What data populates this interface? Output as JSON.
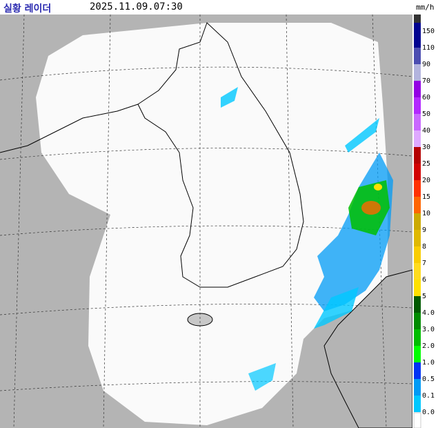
{
  "header": {
    "title": "실황 레이더",
    "time": "2025.11.09.07:30",
    "unit": "mm/h"
  },
  "legend": {
    "items": [
      {
        "label": "150",
        "color": "#000390"
      },
      {
        "label": "110",
        "color": "#000390"
      },
      {
        "label": "90",
        "color": "#4c4eb1"
      },
      {
        "label": "70",
        "color": "#b3b4de"
      },
      {
        "label": "60",
        "color": "#9300e4"
      },
      {
        "label": "50",
        "color": "#b329ff"
      },
      {
        "label": "40",
        "color": "#c969ff"
      },
      {
        "label": "30",
        "color": "#dfa9ff"
      },
      {
        "label": "25",
        "color": "#b40000"
      },
      {
        "label": "20",
        "color": "#d20000"
      },
      {
        "label": "15",
        "color": "#ff3200"
      },
      {
        "label": "10",
        "color": "#ff6600"
      },
      {
        "label": "9",
        "color": "#ccaa00"
      },
      {
        "label": "8",
        "color": "#e0b900"
      },
      {
        "label": "7",
        "color": "#f9cd00"
      },
      {
        "label": "6",
        "color": "#ffdc1f"
      },
      {
        "label": "5",
        "color": "#ffe100"
      },
      {
        "label": "4.0",
        "color": "#005a00"
      },
      {
        "label": "3.0",
        "color": "#008c00"
      },
      {
        "label": "2.0",
        "color": "#00be00"
      },
      {
        "label": "1.0",
        "color": "#00ff00"
      },
      {
        "label": "0.5",
        "color": "#0033f5"
      },
      {
        "label": "0.1",
        "color": "#009bf5"
      },
      {
        "label": "0.0",
        "color": "#00c8ff"
      }
    ]
  }
}
